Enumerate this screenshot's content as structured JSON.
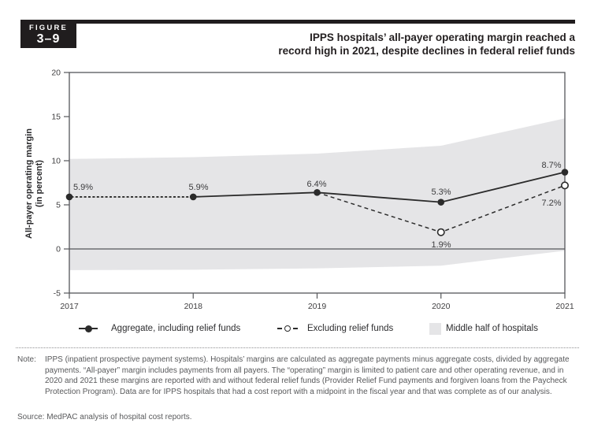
{
  "header": {
    "badge_label": "FIGURE",
    "badge_number": "3–9",
    "title_line1": "IPPS hospitals’ all-payer operating margin reached a",
    "title_line2": "record high in 2021, despite declines in federal relief funds"
  },
  "chart_data": {
    "type": "line",
    "title": "IPPS hospitals’ all-payer operating margin reached a record high in 2021, despite declines in federal relief funds",
    "ylabel_line1": "All-payer operating margin",
    "ylabel_line2": "(in percent)",
    "x": [
      "2017",
      "2018",
      "2019",
      "2020",
      "2021"
    ],
    "ylim": [
      -5,
      20
    ],
    "yticks": [
      20,
      15,
      10,
      5,
      0,
      -5
    ],
    "ytick_labels": [
      "20",
      "15",
      "10",
      "5",
      "0",
      "-5"
    ],
    "grid": "zero-line-only",
    "legend_position": "bottom",
    "series": [
      {
        "name": "Aggregate, including relief funds",
        "style": "solid-line-filled-circle",
        "values": [
          5.9,
          5.9,
          6.4,
          5.3,
          8.7
        ],
        "labels": [
          "5.9%",
          "5.9%",
          "6.4%",
          "5.3%",
          "8.7%"
        ]
      },
      {
        "name": "Excluding relief funds",
        "style": "dashed-line-open-circle",
        "values": [
          5.9,
          5.9,
          6.4,
          1.9,
          7.2
        ],
        "labels": [
          null,
          null,
          null,
          "1.9%",
          "7.2%"
        ]
      }
    ],
    "band": {
      "name": "Middle half of hospitals",
      "top": [
        10.2,
        10.4,
        10.8,
        11.7,
        14.8
      ],
      "bottom": [
        -2.4,
        -2.35,
        -2.2,
        -1.9,
        -0.2
      ]
    }
  },
  "legend": {
    "items": [
      {
        "label": "Aggregate, including relief funds",
        "marker": "solid-line-filled-circle"
      },
      {
        "label": "Excluding relief funds",
        "marker": "dashed-line-open-circle"
      },
      {
        "label": "Middle half of hospitals",
        "marker": "gray-square"
      }
    ]
  },
  "footer": {
    "note_label": "Note:",
    "note_text": "IPPS (inpatient prospective payment systems). Hospitals’ margins are calculated as aggregate payments minus aggregate costs, divided by aggregate payments. “All-payer” margin includes payments from all payers. The “operating” margin is limited to patient care and other operating revenue, and in 2020 and 2021 these margins are reported with and without federal relief funds (Provider Relief Fund payments and forgiven loans from the Paycheck Protection Program). Data are for IPPS hospitals that had a cost report with a midpoint in the fiscal year and that was complete as of our analysis.",
    "source_text": "Source: MedPAC analysis of hospital cost reports."
  },
  "colors": {
    "line": "#2b2b2b",
    "band": "#e5e5e7",
    "axis": "#55565a",
    "tick_label": "#414042",
    "point_label": "#3c3c3e",
    "badge_bg": "#201d1e",
    "note_text": "#58595b"
  }
}
